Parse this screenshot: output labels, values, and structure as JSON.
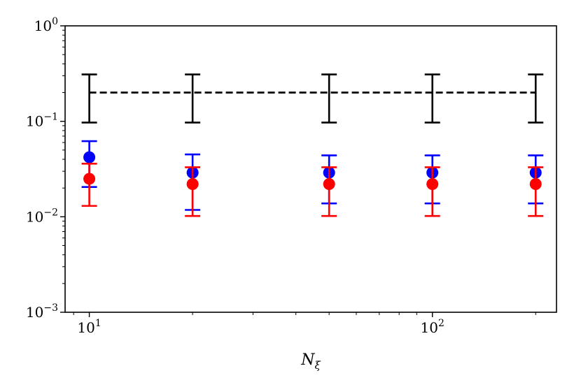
{
  "chart_data": {
    "type": "scatter",
    "title": "",
    "xlabel": "N",
    "xlabel_sub": "ξ",
    "ylabel": "",
    "xscale": "log",
    "yscale": "log",
    "xlim": [
      8.5,
      230
    ],
    "ylim": [
      0.001,
      1
    ],
    "grid": false,
    "x_ticks": [
      {
        "value": 10,
        "base": "10",
        "exp": "1"
      },
      {
        "value": 100,
        "base": "10",
        "exp": "2"
      }
    ],
    "y_ticks": [
      {
        "value": 0.001,
        "base": "10",
        "exp": "−3"
      },
      {
        "value": 0.01,
        "base": "10",
        "exp": "−2"
      },
      {
        "value": 0.1,
        "base": "10",
        "exp": "−1"
      },
      {
        "value": 1,
        "base": "10",
        "exp": "0"
      }
    ],
    "reference": {
      "color": "#000000",
      "style": "dashed",
      "x": [
        10,
        20,
        50,
        100,
        200
      ],
      "y": [
        0.2,
        0.2,
        0.2,
        0.2,
        0.2
      ],
      "lower": [
        0.097,
        0.097,
        0.097,
        0.097,
        0.097
      ],
      "upper": [
        0.31,
        0.31,
        0.31,
        0.31,
        0.31
      ]
    },
    "series": [
      {
        "color": "#0000ff",
        "x": [
          10,
          20,
          50,
          100,
          200
        ],
        "y": [
          0.042,
          0.029,
          0.029,
          0.029,
          0.029
        ],
        "lower": [
          0.0205,
          0.0118,
          0.0138,
          0.0138,
          0.0138
        ],
        "upper": [
          0.062,
          0.045,
          0.044,
          0.044,
          0.044
        ]
      },
      {
        "color": "#ff0000",
        "x": [
          10,
          20,
          50,
          100,
          200
        ],
        "y": [
          0.025,
          0.022,
          0.022,
          0.022,
          0.022
        ],
        "lower": [
          0.013,
          0.0102,
          0.0102,
          0.0102,
          0.0102
        ],
        "upper": [
          0.036,
          0.033,
          0.033,
          0.033,
          0.033
        ]
      }
    ]
  }
}
